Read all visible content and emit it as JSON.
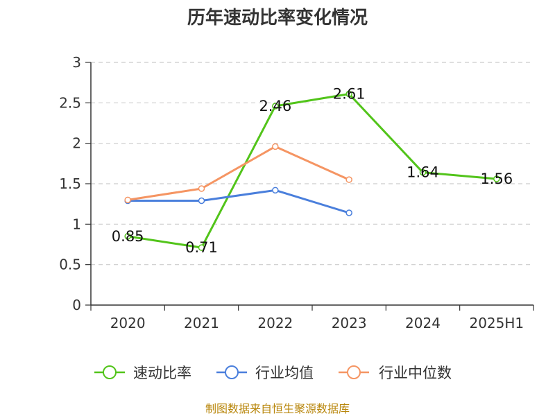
{
  "chart_data": {
    "type": "line",
    "title": "历年速动比率变化情况",
    "categories": [
      "2020",
      "2021",
      "2022",
      "2023",
      "2024",
      "2025H1"
    ],
    "ylim": [
      0,
      3
    ],
    "yticks": [
      "0",
      "0.5",
      "1",
      "1.5",
      "2",
      "2.5",
      "3"
    ],
    "grid": true,
    "legend_position": "bottom",
    "series": [
      {
        "name": "速动比率",
        "color": "#52c41a",
        "values": [
          0.85,
          0.71,
          2.46,
          2.61,
          1.64,
          1.56
        ],
        "labels": [
          "0.85",
          "0.71",
          "2.46",
          "2.61",
          "1.64",
          "1.56"
        ]
      },
      {
        "name": "行业均值",
        "color": "#4a7fdc",
        "values": [
          1.29,
          1.29,
          1.42,
          1.14,
          null,
          null
        ]
      },
      {
        "name": "行业中位数",
        "color": "#f59563",
        "values": [
          1.3,
          1.44,
          1.96,
          1.55,
          null,
          null
        ]
      }
    ],
    "source": "制图数据来自恒生聚源数据库"
  }
}
